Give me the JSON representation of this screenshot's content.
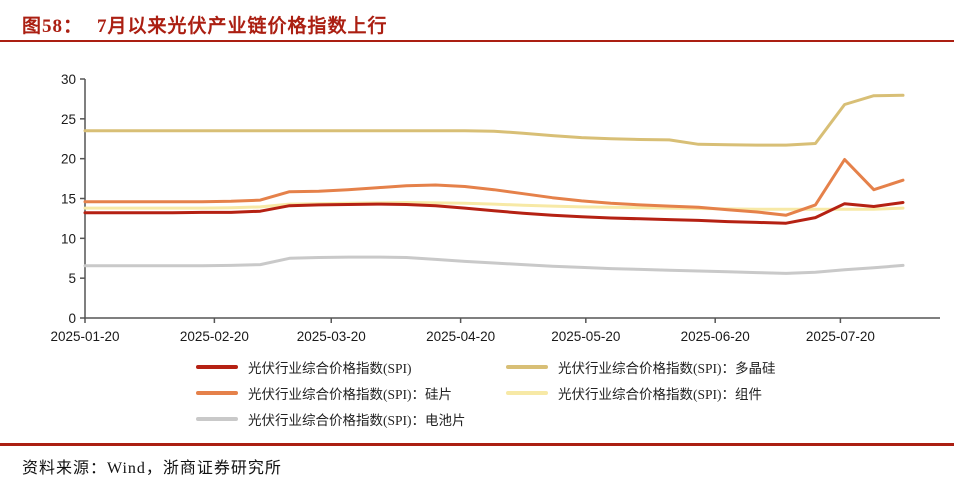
{
  "header": {
    "figure_label": "图58：",
    "title": "7月以来光伏产业链价格指数上行"
  },
  "footer": {
    "source": "资料来源：Wind，浙商证券研究所"
  },
  "colors": {
    "accent_red": "#ab1f12",
    "axis": "#555555"
  },
  "chart_data": {
    "type": "line",
    "title": "图58：7月以来光伏产业链价格指数上行",
    "xlabel": "",
    "ylabel": "",
    "ylim": [
      0,
      30
    ],
    "yticks": [
      0,
      5,
      10,
      15,
      20,
      25,
      30
    ],
    "xticks": [
      "2025-01-20",
      "2025-02-20",
      "2025-03-20",
      "2025-04-20",
      "2025-05-20",
      "2025-06-20",
      "2025-07-20"
    ],
    "grid": false,
    "legend_position": "bottom",
    "x": [
      "2025-01-20",
      "2025-01-27",
      "2025-02-03",
      "2025-02-10",
      "2025-02-17",
      "2025-02-24",
      "2025-03-03",
      "2025-03-10",
      "2025-03-17",
      "2025-03-24",
      "2025-03-31",
      "2025-04-07",
      "2025-04-14",
      "2025-04-21",
      "2025-04-28",
      "2025-05-05",
      "2025-05-12",
      "2025-05-19",
      "2025-05-26",
      "2025-06-02",
      "2025-06-09",
      "2025-06-16",
      "2025-06-23",
      "2025-06-30",
      "2025-07-07",
      "2025-07-14",
      "2025-07-21",
      "2025-07-28",
      "2025-08-04"
    ],
    "series": [
      {
        "name": "光伏行业综合价格指数(SPI)",
        "color": "#b52113",
        "z": 5,
        "values": [
          13.2,
          13.2,
          13.2,
          13.2,
          13.25,
          13.25,
          13.4,
          14.1,
          14.2,
          14.25,
          14.3,
          14.25,
          14.1,
          13.8,
          13.45,
          13.15,
          12.9,
          12.7,
          12.55,
          12.45,
          12.35,
          12.25,
          12.1,
          12.0,
          11.9,
          12.6,
          14.35,
          14.0,
          14.5
        ]
      },
      {
        "name": "光伏行业综合价格指数(SPI)：多晶硅",
        "color": "#d8bf76",
        "z": 2,
        "values": [
          23.5,
          23.5,
          23.5,
          23.5,
          23.5,
          23.5,
          23.5,
          23.5,
          23.5,
          23.5,
          23.5,
          23.5,
          23.5,
          23.5,
          23.45,
          23.2,
          22.9,
          22.65,
          22.5,
          22.4,
          22.35,
          21.8,
          21.75,
          21.7,
          21.7,
          21.9,
          26.8,
          27.9,
          27.95
        ]
      },
      {
        "name": "光伏行业综合价格指数(SPI)：硅片",
        "color": "#e5814a",
        "z": 4,
        "values": [
          14.6,
          14.6,
          14.6,
          14.6,
          14.6,
          14.65,
          14.8,
          15.85,
          15.9,
          16.1,
          16.35,
          16.6,
          16.7,
          16.5,
          16.1,
          15.6,
          15.1,
          14.7,
          14.4,
          14.2,
          14.05,
          13.9,
          13.6,
          13.3,
          12.9,
          14.2,
          19.9,
          16.1,
          17.3
        ]
      },
      {
        "name": "光伏行业综合价格指数(SPI)：组件",
        "color": "#f7e9a6",
        "z": 3,
        "values": [
          13.8,
          13.8,
          13.8,
          13.8,
          13.8,
          13.85,
          13.95,
          14.3,
          14.35,
          14.4,
          14.45,
          14.5,
          14.45,
          14.4,
          14.3,
          14.15,
          14.05,
          13.95,
          13.9,
          13.85,
          13.8,
          13.75,
          13.7,
          13.65,
          13.65,
          13.65,
          13.65,
          13.65,
          13.8
        ]
      },
      {
        "name": "光伏行业综合价格指数(SPI)：电池片",
        "color": "#c9c9c9",
        "z": 1,
        "values": [
          6.55,
          6.55,
          6.55,
          6.55,
          6.55,
          6.6,
          6.7,
          7.5,
          7.6,
          7.65,
          7.65,
          7.6,
          7.35,
          7.1,
          6.9,
          6.7,
          6.5,
          6.35,
          6.2,
          6.1,
          6.0,
          5.9,
          5.8,
          5.7,
          5.6,
          5.75,
          6.05,
          6.3,
          6.6
        ]
      }
    ]
  }
}
